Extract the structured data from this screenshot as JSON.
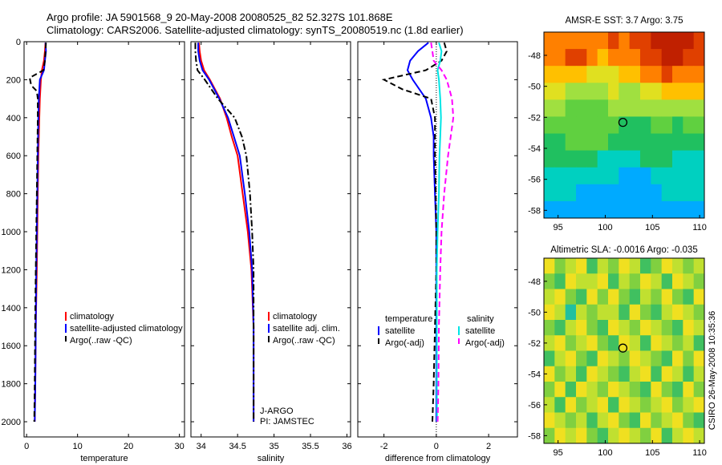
{
  "header": {
    "title_line1": "Argo profile: JA 5901568_9 20-May-2008 20080525_82 52.327S 101.868E",
    "title_line2": "Climatology: CARS2006. Satellite-adjusted climatology: synTS_20080519.nc (1.8d earlier)"
  },
  "credit": "CSIRO 26-May-2008 10:35:36",
  "colors": {
    "red": "#ff0000",
    "blue": "#0000ff",
    "black": "#000000",
    "cyan": "#00e5e5",
    "magenta": "#ff00ff"
  },
  "chart_data": [
    {
      "type": "line",
      "xlabel": "temperature",
      "xlim": [
        -0.5,
        31
      ],
      "xticks": [
        0,
        10,
        20,
        30
      ],
      "ylim": [
        2080,
        0
      ],
      "yticks": [
        0,
        200,
        400,
        600,
        800,
        1000,
        1200,
        1400,
        1600,
        1800,
        2000
      ],
      "legend": {
        "placement": "middle-right",
        "entries": [
          "climatology",
          "satellite-adjusted climatology",
          "Argo(..raw -QC)"
        ]
      },
      "series": [
        {
          "name": "climatology",
          "color": "red",
          "dash": "solid",
          "x": [
            3.7,
            3.6,
            3.4,
            3.0,
            2.8,
            2.6,
            2.5,
            2.4,
            2.3,
            2.2,
            2.1,
            2.0,
            1.8,
            1.7,
            1.6
          ],
          "y": [
            5,
            50,
            100,
            150,
            200,
            300,
            400,
            500,
            600,
            800,
            1000,
            1200,
            1500,
            1800,
            2000
          ]
        },
        {
          "name": "satellite-adjusted climatology",
          "color": "blue",
          "dash": "solid",
          "x": [
            3.7,
            3.8,
            3.6,
            3.4,
            2.6,
            2.4,
            2.3,
            2.25,
            2.2,
            2.1,
            2.0,
            1.9,
            1.8,
            1.7,
            1.6
          ],
          "y": [
            5,
            50,
            100,
            150,
            200,
            300,
            400,
            500,
            600,
            800,
            1000,
            1200,
            1500,
            1800,
            2000
          ]
        },
        {
          "name": "Argo(..raw -QC)",
          "color": "black",
          "dash": "dash",
          "x": [
            3.8,
            3.7,
            3.6,
            3.3,
            0.6,
            0.9,
            2.0,
            2.2,
            2.2,
            2.1,
            2.0,
            1.9,
            1.7,
            1.6,
            1.5
          ],
          "y": [
            5,
            50,
            100,
            150,
            190,
            230,
            260,
            300,
            400,
            600,
            800,
            1000,
            1400,
            1800,
            2000
          ]
        }
      ]
    },
    {
      "type": "line",
      "xlabel": "salinity",
      "xlim": [
        33.86,
        36.05
      ],
      "xticks": [
        34,
        34.5,
        35,
        35.5,
        36
      ],
      "ylim": [
        2080,
        0
      ],
      "yticks": [
        0,
        200,
        400,
        600,
        800,
        1000,
        1200,
        1400,
        1600,
        1800,
        2000
      ],
      "legend": {
        "placement": "middle-right",
        "entries": [
          "climatology",
          "satellite adj. clim.",
          "Argo(..raw -QC)"
        ]
      },
      "annotations": [
        "J-ARGO",
        "PI: JAMSTEC"
      ],
      "series": [
        {
          "name": "climatology",
          "color": "red",
          "dash": "solid",
          "x": [
            33.97,
            33.98,
            34.0,
            34.04,
            34.12,
            34.26,
            34.35,
            34.42,
            34.5,
            34.57,
            34.64,
            34.69,
            34.72,
            34.72,
            34.72
          ],
          "y": [
            5,
            50,
            100,
            150,
            200,
            300,
            400,
            500,
            600,
            800,
            1000,
            1200,
            1500,
            1800,
            2000
          ]
        },
        {
          "name": "satellite adj. clim.",
          "color": "blue",
          "dash": "solid",
          "x": [
            33.96,
            33.96,
            33.98,
            34.02,
            34.11,
            34.25,
            34.37,
            34.45,
            34.53,
            34.6,
            34.66,
            34.7,
            34.72,
            34.72,
            34.72
          ],
          "y": [
            5,
            50,
            100,
            150,
            200,
            300,
            400,
            500,
            600,
            800,
            1000,
            1200,
            1500,
            1800,
            2000
          ]
        },
        {
          "name": "Argo(..raw -QC)",
          "color": "black",
          "dash": "dashdot",
          "x": [
            33.92,
            33.92,
            33.93,
            33.95,
            34.05,
            34.23,
            34.46,
            34.56,
            34.62,
            34.67,
            34.7,
            34.72,
            34.72,
            34.72,
            34.72
          ],
          "y": [
            5,
            50,
            100,
            150,
            200,
            300,
            400,
            500,
            600,
            800,
            1000,
            1200,
            1500,
            1800,
            2000
          ]
        }
      ]
    },
    {
      "type": "line",
      "xlabel": "difference from climatology",
      "xlim": [
        -3.0,
        3.1
      ],
      "xticks": [
        -2,
        0,
        2
      ],
      "ylim": [
        2080,
        0
      ],
      "yticks": [
        0,
        200,
        400,
        600,
        800,
        1000,
        1200,
        1400,
        1600,
        1800,
        2000
      ],
      "legend": {
        "placement": "middle",
        "temperature_header": "temperature",
        "salinity_header": "salinity",
        "entries": [
          "satellite",
          "Argo(-adj)",
          "satellite",
          "Argo(-adj)"
        ]
      },
      "series": [
        {
          "name": "satellite",
          "group": "temperature",
          "color": "blue",
          "dash": "solid",
          "x": [
            -0.3,
            -0.7,
            -1.0,
            -1.1,
            -0.9,
            -0.4,
            -0.2,
            -0.1,
            -0.1,
            -0.05,
            0.0,
            0.0,
            0.0,
            0.0,
            0.0
          ],
          "y": [
            5,
            50,
            100,
            150,
            200,
            300,
            400,
            500,
            600,
            800,
            1000,
            1200,
            1500,
            1800,
            2000
          ]
        },
        {
          "name": "Argo(-adj)",
          "group": "temperature",
          "color": "black",
          "dash": "dash",
          "x": [
            0.3,
            0.4,
            0.2,
            -0.4,
            -2.0,
            -1.3,
            -0.2,
            -0.05,
            -0.05,
            -0.02,
            0.0,
            0.0,
            -0.05,
            -0.1,
            -0.15
          ],
          "y": [
            5,
            50,
            100,
            150,
            200,
            250,
            300,
            400,
            600,
            800,
            1000,
            1200,
            1500,
            1800,
            2000
          ]
        },
        {
          "name": "satellite",
          "group": "salinity",
          "color": "cyan",
          "dash": "solid",
          "x": [
            0.1,
            0.2,
            0.15,
            0.05,
            0.1,
            0.15,
            0.18,
            0.15,
            0.12,
            0.1,
            0.05,
            0.02,
            0.02,
            0.02,
            0.03
          ],
          "y": [
            5,
            50,
            100,
            150,
            200,
            300,
            400,
            500,
            600,
            800,
            1000,
            1200,
            1500,
            1800,
            2000
          ]
        },
        {
          "name": "Argo(-adj)",
          "group": "salinity",
          "color": "magenta",
          "dash": "dash",
          "x": [
            -0.2,
            -0.15,
            -0.1,
            0.2,
            0.4,
            0.6,
            0.65,
            0.55,
            0.45,
            0.3,
            0.2,
            0.15,
            0.1,
            0.08,
            0.05
          ],
          "y": [
            5,
            50,
            100,
            150,
            200,
            300,
            400,
            500,
            600,
            800,
            1000,
            1200,
            1500,
            1800,
            2000
          ]
        }
      ]
    },
    {
      "type": "heatmap",
      "title": "AMSR-E SST: 3.7 Argo: 3.75",
      "xlim": [
        93.5,
        110.5
      ],
      "ylim": [
        -58.5,
        -46.5
      ],
      "xticks": [
        95,
        100,
        105,
        110
      ],
      "yticks": [
        -48,
        -50,
        -52,
        -54,
        -56,
        -58
      ],
      "colormap": [
        "#0080ff",
        "#00aaff",
        "#00d0c0",
        "#20c060",
        "#60d040",
        "#a0e040",
        "#e0e020",
        "#ffc000",
        "#ff8000",
        "#e04000",
        "#c02000"
      ],
      "rows_north_to_south": [
        [
          8,
          8,
          8,
          8,
          8,
          8,
          9,
          8,
          9,
          9,
          10,
          10,
          10,
          10,
          9
        ],
        [
          8,
          8,
          9,
          9,
          8,
          7,
          8,
          8,
          8,
          9,
          9,
          10,
          10,
          9,
          9
        ],
        [
          7,
          7,
          7,
          7,
          6,
          6,
          6,
          7,
          7,
          8,
          8,
          9,
          8,
          8,
          8
        ],
        [
          6,
          6,
          5,
          5,
          5,
          5,
          6,
          5,
          5,
          6,
          6,
          7,
          7,
          7,
          7
        ],
        [
          5,
          5,
          4,
          4,
          4,
          4,
          5,
          5,
          5,
          5,
          5,
          5,
          5,
          5,
          5
        ],
        [
          4,
          4,
          4,
          4,
          4,
          4,
          4,
          3,
          3,
          3,
          4,
          4,
          3,
          4,
          4
        ],
        [
          3,
          3,
          4,
          4,
          4,
          4,
          3,
          3,
          3,
          3,
          3,
          3,
          3,
          3,
          3
        ],
        [
          3,
          3,
          3,
          3,
          3,
          2,
          2,
          2,
          2,
          3,
          3,
          3,
          2,
          2,
          2
        ],
        [
          2,
          2,
          2,
          2,
          2,
          2,
          2,
          1,
          1,
          1,
          2,
          2,
          2,
          2,
          2
        ],
        [
          2,
          2,
          2,
          1,
          1,
          1,
          1,
          1,
          1,
          1,
          1,
          2,
          2,
          2,
          2
        ],
        [
          1,
          1,
          1,
          1,
          1,
          1,
          1,
          1,
          1,
          1,
          1,
          1,
          1,
          1,
          1
        ]
      ],
      "marker": {
        "x": 101.868,
        "y": -52.327
      }
    },
    {
      "type": "heatmap",
      "title": "Altimetric SLA: -0.0016 Argo: -0.035",
      "xlim": [
        93.5,
        110.5
      ],
      "ylim": [
        -58.5,
        -46.5
      ],
      "xticks": [
        95,
        100,
        105,
        110
      ],
      "yticks": [
        -48,
        -50,
        -52,
        -54,
        -56,
        -58
      ],
      "colormap": [
        "#2060ff",
        "#00b0ff",
        "#20c0a0",
        "#40c060",
        "#80d040",
        "#c0e030",
        "#f0e020",
        "#ffb000",
        "#ff6000"
      ],
      "rows_north_to_south": [
        [
          6,
          4,
          5,
          6,
          3,
          5,
          4,
          6,
          5,
          3,
          4,
          6,
          5,
          4,
          5
        ],
        [
          4,
          3,
          6,
          5,
          5,
          6,
          3,
          5,
          4,
          6,
          5,
          3,
          6,
          5,
          4
        ],
        [
          5,
          6,
          4,
          3,
          6,
          4,
          6,
          4,
          3,
          5,
          4,
          6,
          4,
          3,
          6
        ],
        [
          6,
          5,
          2,
          5,
          4,
          5,
          5,
          3,
          6,
          4,
          3,
          5,
          6,
          5,
          4
        ],
        [
          4,
          3,
          5,
          6,
          4,
          3,
          6,
          5,
          4,
          6,
          5,
          4,
          3,
          6,
          5
        ],
        [
          5,
          6,
          4,
          5,
          6,
          4,
          3,
          6,
          5,
          3,
          6,
          5,
          4,
          5,
          3
        ],
        [
          3,
          5,
          6,
          4,
          3,
          6,
          5,
          4,
          6,
          5,
          4,
          3,
          6,
          4,
          6
        ],
        [
          6,
          4,
          5,
          3,
          6,
          5,
          4,
          3,
          5,
          6,
          3,
          6,
          5,
          3,
          5
        ],
        [
          4,
          6,
          3,
          6,
          5,
          4,
          6,
          5,
          4,
          3,
          6,
          4,
          3,
          6,
          4
        ],
        [
          5,
          3,
          6,
          4,
          5,
          6,
          3,
          6,
          5,
          4,
          5,
          6,
          4,
          5,
          6
        ],
        [
          6,
          5,
          4,
          5,
          3,
          5,
          6,
          4,
          3,
          6,
          4,
          5,
          6,
          4,
          3
        ],
        [
          4,
          6,
          5,
          6,
          4,
          3,
          5,
          6,
          5,
          4,
          6,
          3,
          5,
          6,
          5
        ]
      ],
      "marker": {
        "x": 101.868,
        "y": -52.327
      }
    }
  ]
}
